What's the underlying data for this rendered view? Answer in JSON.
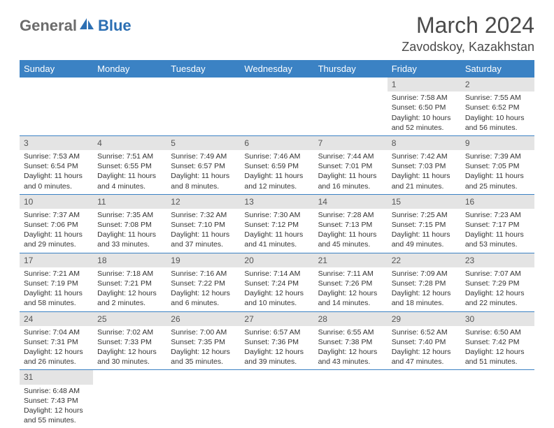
{
  "logo": {
    "part1": "General",
    "part2": "Blue"
  },
  "title": "March 2024",
  "location": "Zavodskoy, Kazakhstan",
  "colors": {
    "header_bg": "#3b82c4",
    "header_fg": "#ffffff",
    "daynum_bg": "#e4e4e4",
    "row_border": "#3b82c4",
    "logo_gray": "#6b6b6b",
    "logo_blue": "#2c6fb3"
  },
  "day_headers": [
    "Sunday",
    "Monday",
    "Tuesday",
    "Wednesday",
    "Thursday",
    "Friday",
    "Saturday"
  ],
  "weeks": [
    [
      {
        "empty": true
      },
      {
        "empty": true
      },
      {
        "empty": true
      },
      {
        "empty": true
      },
      {
        "empty": true
      },
      {
        "num": "1",
        "sunrise": "Sunrise: 7:58 AM",
        "sunset": "Sunset: 6:50 PM",
        "daylight": "Daylight: 10 hours and 52 minutes."
      },
      {
        "num": "2",
        "sunrise": "Sunrise: 7:55 AM",
        "sunset": "Sunset: 6:52 PM",
        "daylight": "Daylight: 10 hours and 56 minutes."
      }
    ],
    [
      {
        "num": "3",
        "sunrise": "Sunrise: 7:53 AM",
        "sunset": "Sunset: 6:54 PM",
        "daylight": "Daylight: 11 hours and 0 minutes."
      },
      {
        "num": "4",
        "sunrise": "Sunrise: 7:51 AM",
        "sunset": "Sunset: 6:55 PM",
        "daylight": "Daylight: 11 hours and 4 minutes."
      },
      {
        "num": "5",
        "sunrise": "Sunrise: 7:49 AM",
        "sunset": "Sunset: 6:57 PM",
        "daylight": "Daylight: 11 hours and 8 minutes."
      },
      {
        "num": "6",
        "sunrise": "Sunrise: 7:46 AM",
        "sunset": "Sunset: 6:59 PM",
        "daylight": "Daylight: 11 hours and 12 minutes."
      },
      {
        "num": "7",
        "sunrise": "Sunrise: 7:44 AM",
        "sunset": "Sunset: 7:01 PM",
        "daylight": "Daylight: 11 hours and 16 minutes."
      },
      {
        "num": "8",
        "sunrise": "Sunrise: 7:42 AM",
        "sunset": "Sunset: 7:03 PM",
        "daylight": "Daylight: 11 hours and 21 minutes."
      },
      {
        "num": "9",
        "sunrise": "Sunrise: 7:39 AM",
        "sunset": "Sunset: 7:05 PM",
        "daylight": "Daylight: 11 hours and 25 minutes."
      }
    ],
    [
      {
        "num": "10",
        "sunrise": "Sunrise: 7:37 AM",
        "sunset": "Sunset: 7:06 PM",
        "daylight": "Daylight: 11 hours and 29 minutes."
      },
      {
        "num": "11",
        "sunrise": "Sunrise: 7:35 AM",
        "sunset": "Sunset: 7:08 PM",
        "daylight": "Daylight: 11 hours and 33 minutes."
      },
      {
        "num": "12",
        "sunrise": "Sunrise: 7:32 AM",
        "sunset": "Sunset: 7:10 PM",
        "daylight": "Daylight: 11 hours and 37 minutes."
      },
      {
        "num": "13",
        "sunrise": "Sunrise: 7:30 AM",
        "sunset": "Sunset: 7:12 PM",
        "daylight": "Daylight: 11 hours and 41 minutes."
      },
      {
        "num": "14",
        "sunrise": "Sunrise: 7:28 AM",
        "sunset": "Sunset: 7:13 PM",
        "daylight": "Daylight: 11 hours and 45 minutes."
      },
      {
        "num": "15",
        "sunrise": "Sunrise: 7:25 AM",
        "sunset": "Sunset: 7:15 PM",
        "daylight": "Daylight: 11 hours and 49 minutes."
      },
      {
        "num": "16",
        "sunrise": "Sunrise: 7:23 AM",
        "sunset": "Sunset: 7:17 PM",
        "daylight": "Daylight: 11 hours and 53 minutes."
      }
    ],
    [
      {
        "num": "17",
        "sunrise": "Sunrise: 7:21 AM",
        "sunset": "Sunset: 7:19 PM",
        "daylight": "Daylight: 11 hours and 58 minutes."
      },
      {
        "num": "18",
        "sunrise": "Sunrise: 7:18 AM",
        "sunset": "Sunset: 7:21 PM",
        "daylight": "Daylight: 12 hours and 2 minutes."
      },
      {
        "num": "19",
        "sunrise": "Sunrise: 7:16 AM",
        "sunset": "Sunset: 7:22 PM",
        "daylight": "Daylight: 12 hours and 6 minutes."
      },
      {
        "num": "20",
        "sunrise": "Sunrise: 7:14 AM",
        "sunset": "Sunset: 7:24 PM",
        "daylight": "Daylight: 12 hours and 10 minutes."
      },
      {
        "num": "21",
        "sunrise": "Sunrise: 7:11 AM",
        "sunset": "Sunset: 7:26 PM",
        "daylight": "Daylight: 12 hours and 14 minutes."
      },
      {
        "num": "22",
        "sunrise": "Sunrise: 7:09 AM",
        "sunset": "Sunset: 7:28 PM",
        "daylight": "Daylight: 12 hours and 18 minutes."
      },
      {
        "num": "23",
        "sunrise": "Sunrise: 7:07 AM",
        "sunset": "Sunset: 7:29 PM",
        "daylight": "Daylight: 12 hours and 22 minutes."
      }
    ],
    [
      {
        "num": "24",
        "sunrise": "Sunrise: 7:04 AM",
        "sunset": "Sunset: 7:31 PM",
        "daylight": "Daylight: 12 hours and 26 minutes."
      },
      {
        "num": "25",
        "sunrise": "Sunrise: 7:02 AM",
        "sunset": "Sunset: 7:33 PM",
        "daylight": "Daylight: 12 hours and 30 minutes."
      },
      {
        "num": "26",
        "sunrise": "Sunrise: 7:00 AM",
        "sunset": "Sunset: 7:35 PM",
        "daylight": "Daylight: 12 hours and 35 minutes."
      },
      {
        "num": "27",
        "sunrise": "Sunrise: 6:57 AM",
        "sunset": "Sunset: 7:36 PM",
        "daylight": "Daylight: 12 hours and 39 minutes."
      },
      {
        "num": "28",
        "sunrise": "Sunrise: 6:55 AM",
        "sunset": "Sunset: 7:38 PM",
        "daylight": "Daylight: 12 hours and 43 minutes."
      },
      {
        "num": "29",
        "sunrise": "Sunrise: 6:52 AM",
        "sunset": "Sunset: 7:40 PM",
        "daylight": "Daylight: 12 hours and 47 minutes."
      },
      {
        "num": "30",
        "sunrise": "Sunrise: 6:50 AM",
        "sunset": "Sunset: 7:42 PM",
        "daylight": "Daylight: 12 hours and 51 minutes."
      }
    ],
    [
      {
        "num": "31",
        "sunrise": "Sunrise: 6:48 AM",
        "sunset": "Sunset: 7:43 PM",
        "daylight": "Daylight: 12 hours and 55 minutes."
      },
      {
        "empty": true
      },
      {
        "empty": true
      },
      {
        "empty": true
      },
      {
        "empty": true
      },
      {
        "empty": true
      },
      {
        "empty": true
      }
    ]
  ]
}
